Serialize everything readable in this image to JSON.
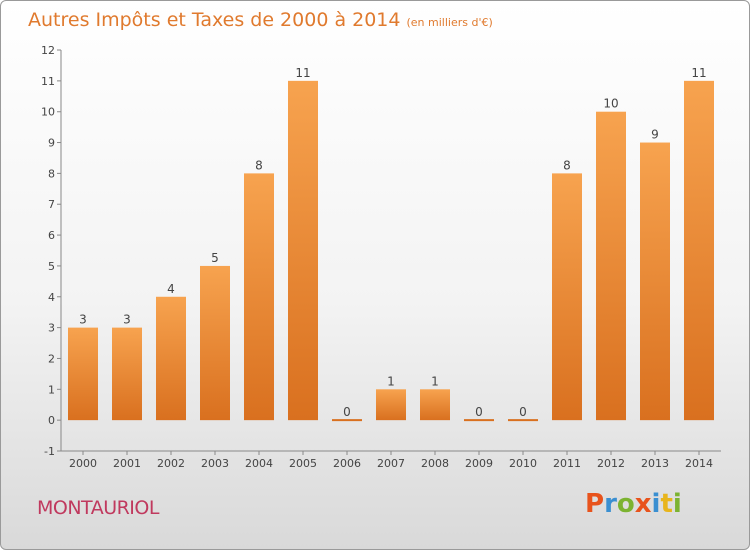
{
  "header": {
    "title": "Autres Impôts et Taxes de 2000 à 2014",
    "unit": "(en milliers d'€)"
  },
  "footer": {
    "commune": "MONTAURIOL",
    "logo": "Proxiti"
  },
  "colors": {
    "title": "#e07a2e",
    "commune": "#c0395e",
    "bar_light": "#f7a34f",
    "bar_dark": "#d9701f",
    "logo_letters": [
      "#e8531c",
      "#3a8fd1",
      "#7cb331",
      "#e8531c",
      "#3a8fd1",
      "#e8b51c",
      "#7cb331"
    ]
  },
  "chart_data": {
    "type": "bar",
    "categories": [
      "2000",
      "2001",
      "2002",
      "2003",
      "2004",
      "2005",
      "2006",
      "2007",
      "2008",
      "2009",
      "2010",
      "2011",
      "2012",
      "2013",
      "2014"
    ],
    "values": [
      3,
      3,
      4,
      5,
      8,
      11,
      0,
      1,
      1,
      0,
      0,
      8,
      10,
      9,
      11
    ],
    "data_labels": [
      "3",
      "3",
      "4",
      "5",
      "8",
      "11",
      "0",
      "1",
      "1",
      "0",
      "0",
      "8",
      "10",
      "9",
      "11"
    ],
    "y_ticks": [
      "-1",
      "0",
      "1",
      "2",
      "3",
      "4",
      "5",
      "6",
      "7",
      "8",
      "9",
      "10",
      "11",
      "12"
    ],
    "ylim": [
      -1,
      12
    ],
    "xlabel": "",
    "ylabel": "",
    "grid": false,
    "legend": "none"
  }
}
